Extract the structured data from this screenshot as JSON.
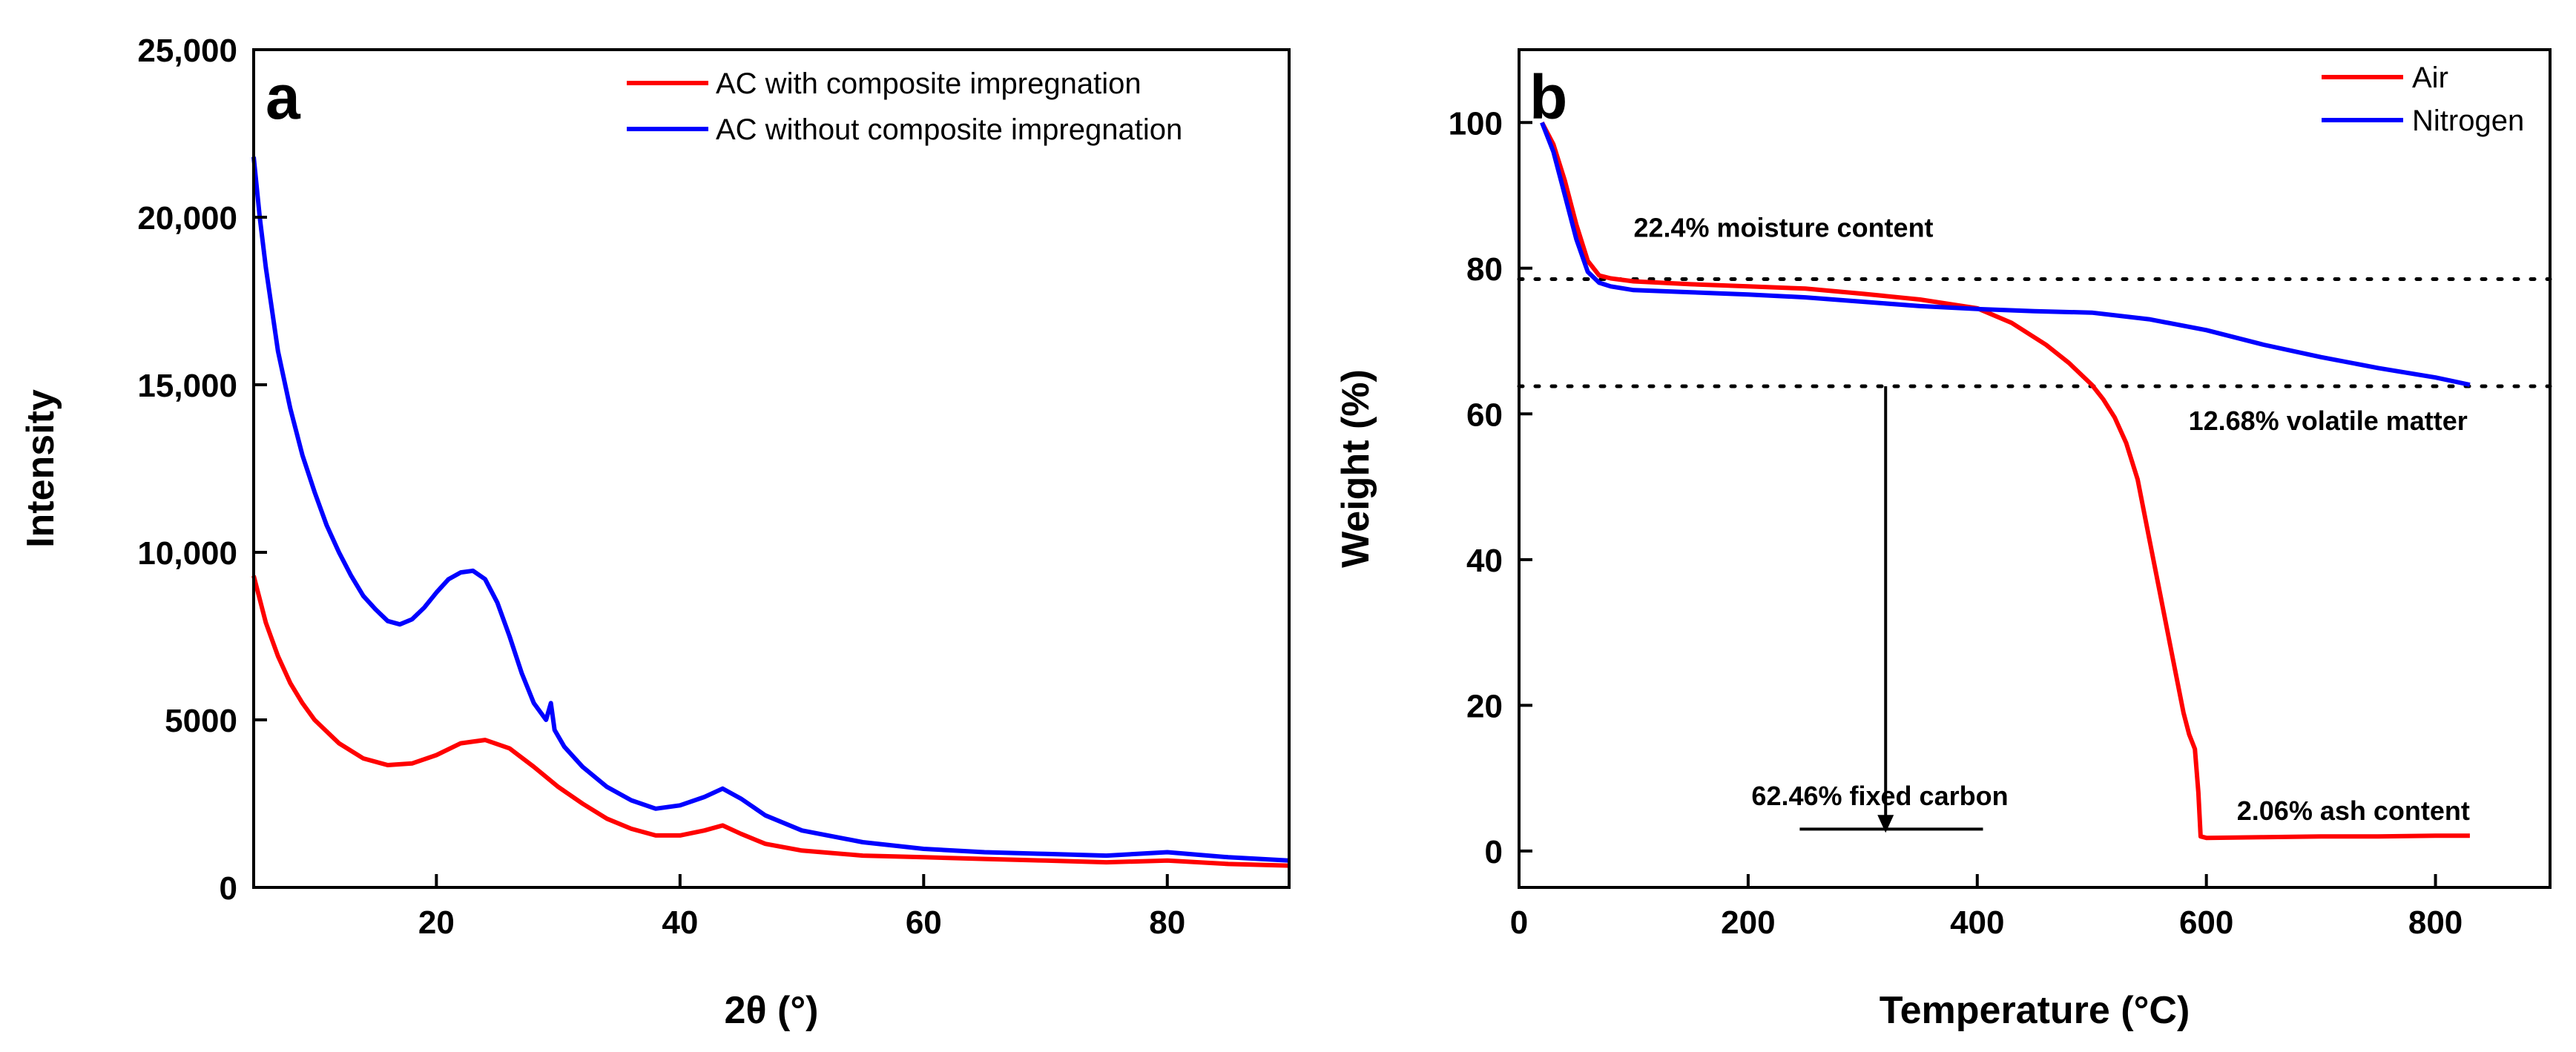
{
  "chart_data": [
    {
      "panel": "a",
      "type": "line",
      "title": "",
      "xlabel": "2θ (°)",
      "ylabel": "Intensity",
      "xlim": [
        5,
        90
      ],
      "ylim": [
        0,
        25000
      ],
      "xticks": [
        "20",
        "40",
        "60",
        "80"
      ],
      "yticks": [
        "0",
        "5000",
        "10,000",
        "15,000",
        "20,000",
        "25,000"
      ],
      "legend_position": "top-right",
      "series": [
        {
          "name": "AC with composite impregnation",
          "color": "#ff0000",
          "x": [
            5,
            6,
            7,
            8,
            9,
            10,
            12,
            14,
            16,
            18,
            20,
            22,
            24,
            26,
            28,
            30,
            32,
            34,
            36,
            38,
            40,
            42,
            43.5,
            45,
            47,
            50,
            55,
            60,
            65,
            70,
            75,
            80,
            85,
            90
          ],
          "y": [
            9300,
            7900,
            6900,
            6100,
            5500,
            5000,
            4300,
            3850,
            3650,
            3700,
            3950,
            4300,
            4400,
            4150,
            3600,
            3000,
            2500,
            2050,
            1750,
            1550,
            1550,
            1700,
            1850,
            1600,
            1300,
            1100,
            950,
            900,
            850,
            800,
            750,
            800,
            700,
            650
          ]
        },
        {
          "name": "AC without composite impregnation",
          "color": "#0000ff",
          "x": [
            5,
            5.5,
            6,
            7,
            8,
            9,
            10,
            11,
            12,
            13,
            14,
            15,
            16,
            17,
            18,
            19,
            20,
            21,
            22,
            23,
            24,
            25,
            26,
            27,
            28,
            29,
            29.4,
            29.7,
            30.5,
            32,
            34,
            36,
            38,
            40,
            42,
            43.5,
            45,
            47,
            50,
            55,
            60,
            65,
            70,
            75,
            80,
            85,
            90
          ],
          "y": [
            21800,
            20000,
            18500,
            16000,
            14300,
            12900,
            11800,
            10800,
            10000,
            9300,
            8700,
            8300,
            7950,
            7850,
            8000,
            8350,
            8800,
            9200,
            9400,
            9450,
            9200,
            8500,
            7500,
            6400,
            5500,
            5000,
            5500,
            4700,
            4200,
            3600,
            3000,
            2600,
            2350,
            2450,
            2700,
            2950,
            2650,
            2150,
            1700,
            1350,
            1150,
            1050,
            1000,
            950,
            1050,
            900,
            800
          ]
        }
      ]
    },
    {
      "panel": "b",
      "type": "line",
      "title": "",
      "xlabel": "Temperature (°C)",
      "ylabel": "Weight (%)",
      "xlim": [
        0,
        900
      ],
      "ylim": [
        -5,
        110
      ],
      "xticks": [
        "0",
        "200",
        "400",
        "600",
        "800"
      ],
      "yticks": [
        "0",
        "20",
        "40",
        "60",
        "80",
        "100"
      ],
      "legend_position": "top-right",
      "series": [
        {
          "name": "Air",
          "color": "#ff0000",
          "x": [
            20,
            30,
            40,
            50,
            60,
            70,
            80,
            100,
            150,
            200,
            250,
            300,
            350,
            400,
            430,
            460,
            480,
            500,
            510,
            520,
            530,
            540,
            550,
            560,
            570,
            580,
            585,
            590,
            593,
            595,
            600,
            650,
            700,
            750,
            800,
            830
          ],
          "y": [
            100,
            97,
            92,
            86,
            81,
            79,
            78.6,
            78.2,
            77.8,
            77.5,
            77.2,
            76.5,
            75.7,
            74.5,
            72.5,
            69.5,
            67,
            64,
            62,
            59.5,
            56,
            51,
            43,
            35,
            27,
            19,
            16,
            14,
            8,
            2,
            1.8,
            1.9,
            2.0,
            2.0,
            2.1,
            2.1
          ]
        },
        {
          "name": "Nitrogen",
          "color": "#0000ff",
          "x": [
            20,
            30,
            40,
            50,
            60,
            70,
            80,
            100,
            150,
            200,
            250,
            300,
            350,
            400,
            450,
            500,
            550,
            600,
            650,
            700,
            750,
            800,
            830
          ],
          "y": [
            100,
            96,
            90,
            84,
            79.5,
            78,
            77.5,
            77,
            76.7,
            76.4,
            76,
            75.4,
            74.8,
            74.4,
            74.1,
            73.9,
            73,
            71.5,
            69.5,
            67.8,
            66.3,
            65,
            64
          ]
        }
      ],
      "reference_lines": [
        78.5,
        63.8
      ],
      "annotations": [
        {
          "text": "22.4% moisture content",
          "x": 100,
          "y": 85.5
        },
        {
          "text": "12.68% volatile matter",
          "x": 828,
          "y": 59
        },
        {
          "text": "62.46% fixed carbon",
          "x": 315,
          "y": 7.5
        },
        {
          "text": "2.06% ash content",
          "x": 830,
          "y": 5.5
        }
      ],
      "arrow": {
        "x": 320,
        "y_from": 63.8,
        "y_to": 2.5
      },
      "baseline_segment": {
        "x_from": 245,
        "x_to": 405,
        "y": 3
      }
    }
  ]
}
